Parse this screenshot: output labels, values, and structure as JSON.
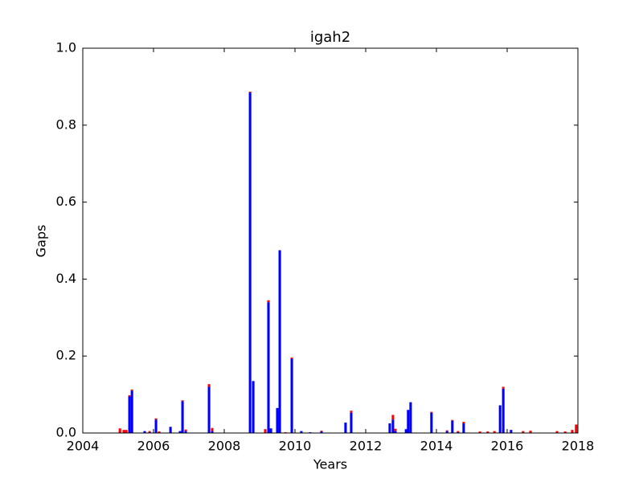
{
  "chart_data": {
    "type": "stacked_bar",
    "title": "igah2",
    "x_label": "Years",
    "y_label": "Gaps",
    "x": [
      2005.05,
      2005.16,
      2005.23,
      2005.32,
      2005.39,
      2005.75,
      2005.89,
      2006.07,
      2006.16,
      2006.48,
      2006.75,
      2006.82,
      2006.91,
      2007.57,
      2007.66,
      2008.73,
      2008.82,
      2009.16,
      2009.25,
      2009.32,
      2009.5,
      2009.57,
      2009.73,
      2009.91,
      2010.18,
      2010.43,
      2010.75,
      2011.43,
      2011.59,
      2012.68,
      2012.77,
      2012.84,
      2013.14,
      2013.2,
      2013.27,
      2013.86,
      2014.3,
      2014.45,
      2014.61,
      2014.77,
      2015.23,
      2015.45,
      2015.64,
      2015.8,
      2015.89,
      2016.11,
      2016.45,
      2016.66,
      2017.41,
      2017.64,
      2017.84,
      2017.95
    ],
    "series": [
      {
        "color": "#0000ff",
        "values": [
          0,
          0,
          0,
          0.095,
          0.11,
          0.005,
          0.002,
          0.035,
          0,
          0.016,
          0.005,
          0.083,
          0.005,
          0.12,
          0.005,
          0.885,
          0.135,
          0,
          0.34,
          0.012,
          0.065,
          0.475,
          0,
          0.193,
          0.005,
          0.002,
          0.004,
          0.027,
          0.053,
          0.025,
          0.035,
          0.005,
          0.01,
          0.06,
          0.08,
          0.053,
          0.005,
          0.032,
          0.002,
          0.025,
          0,
          0,
          0,
          0.072,
          0.115,
          0.008,
          0,
          0,
          0,
          0,
          0,
          0
        ]
      },
      {
        "color": "#ff0000",
        "values": [
          0.012,
          0.008,
          0.008,
          0.003,
          0.003,
          0,
          0.003,
          0.003,
          0.004,
          0,
          0,
          0.002,
          0.004,
          0.007,
          0.008,
          0.002,
          0,
          0.01,
          0.005,
          0,
          0,
          0,
          0.002,
          0.003,
          0,
          0,
          0.002,
          0,
          0.005,
          0,
          0.012,
          0.006,
          0,
          0,
          0,
          0.002,
          0.002,
          0.002,
          0.003,
          0.004,
          0.004,
          0.004,
          0.005,
          0,
          0.005,
          0,
          0.005,
          0.006,
          0.005,
          0.004,
          0.008,
          0.022
        ]
      }
    ],
    "xlim": [
      2004,
      2018
    ],
    "xticks": [
      2004,
      2006,
      2008,
      2010,
      2012,
      2014,
      2016,
      2018
    ],
    "ylim": [
      0,
      1
    ],
    "yticks": [
      {
        "value": 0,
        "label": "0.0"
      },
      0.2,
      0.4,
      0.6,
      0.8,
      {
        "value": 1,
        "label": "1.0"
      }
    ]
  }
}
